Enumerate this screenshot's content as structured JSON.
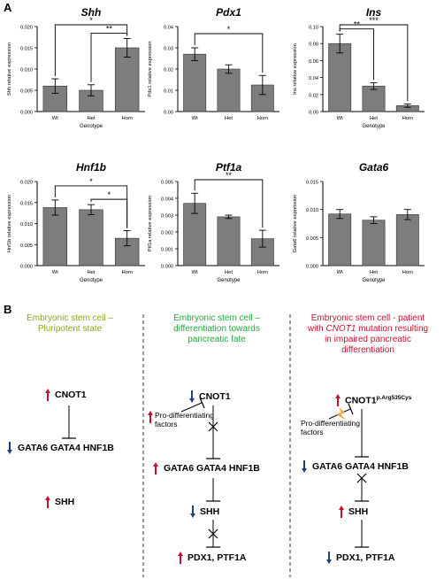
{
  "panel_a": {
    "letter": "A"
  },
  "panel_b": {
    "letter": "B"
  },
  "chart_data": [
    {
      "type": "bar",
      "title": "Shh",
      "ylabel": "Shh relative expression",
      "xlabel": "Genotype",
      "categories": [
        "Wt",
        "Het",
        "Hom"
      ],
      "values": [
        0.006,
        0.005,
        0.015
      ],
      "errors": [
        0.0017,
        0.0013,
        0.0022
      ],
      "ylim": [
        0,
        0.02
      ],
      "yticks": [
        "0.000",
        "0.005",
        "0.010",
        "0.015",
        "0.020"
      ],
      "significance": [
        {
          "from": 0,
          "to": 2,
          "label": "*"
        },
        {
          "from": 1,
          "to": 2,
          "label": "**"
        }
      ]
    },
    {
      "type": "bar",
      "title": "Pdx1",
      "ylabel": "Pdx1 relative expression",
      "xlabel": "",
      "categories": [
        "Wt",
        "Het",
        "Hom"
      ],
      "values": [
        0.027,
        0.02,
        0.0125
      ],
      "errors": [
        0.003,
        0.002,
        0.0045
      ],
      "ylim": [
        0,
        0.04
      ],
      "yticks": [
        "0.00",
        "0.01",
        "0.02",
        "0.03",
        "0.04"
      ],
      "significance": [
        {
          "from": 0,
          "to": 2,
          "label": "*"
        }
      ]
    },
    {
      "type": "bar",
      "title": "Ins",
      "ylabel": "Ins relative expression",
      "xlabel": "Genotype",
      "categories": [
        "Wt",
        "Het",
        "Hom"
      ],
      "values": [
        0.08,
        0.03,
        0.007
      ],
      "errors": [
        0.011,
        0.004,
        0.002
      ],
      "ylim": [
        0,
        0.1
      ],
      "yticks": [
        "0.00",
        "0.02",
        "0.04",
        "0.06",
        "0.08",
        "0.10"
      ],
      "significance": [
        {
          "from": 0,
          "to": 1,
          "label": "**"
        },
        {
          "from": 0,
          "to": 2,
          "label": "***"
        }
      ]
    },
    {
      "type": "bar",
      "title": "Hnf1b",
      "ylabel": "Hnf1b relative expression",
      "xlabel": "Genotype",
      "categories": [
        "Wt",
        "Het",
        "Hom"
      ],
      "values": [
        0.0138,
        0.0133,
        0.0065
      ],
      "errors": [
        0.0018,
        0.0012,
        0.0018
      ],
      "ylim": [
        0,
        0.02
      ],
      "yticks": [
        "0.000",
        "0.005",
        "0.010",
        "0.015",
        "0.020"
      ],
      "significance": [
        {
          "from": 0,
          "to": 2,
          "label": "*"
        },
        {
          "from": 1,
          "to": 2,
          "label": "*"
        }
      ]
    },
    {
      "type": "bar",
      "title": "Ptf1a",
      "ylabel": "Ptf1a relative expression",
      "xlabel": "Genotype",
      "categories": [
        "Wt",
        "Het",
        "Hom"
      ],
      "values": [
        0.0037,
        0.0029,
        0.0016
      ],
      "errors": [
        0.0006,
        0.0001,
        0.0005
      ],
      "ylim": [
        0,
        0.005
      ],
      "yticks": [
        "0.000",
        "0.001",
        "0.002",
        "0.003",
        "0.004",
        "0.005"
      ],
      "significance": [
        {
          "from": 0,
          "to": 2,
          "label": "**"
        }
      ]
    },
    {
      "type": "bar",
      "title": "Gata6",
      "ylabel": "Gata6 relative expression",
      "xlabel": "Genotype",
      "categories": [
        "Wt",
        "Het",
        "Hom"
      ],
      "values": [
        0.0092,
        0.0081,
        0.0091
      ],
      "errors": [
        0.0008,
        0.0006,
        0.0009
      ],
      "ylim": [
        0,
        0.015
      ],
      "yticks": [
        "0.000",
        "0.005",
        "0.010",
        "0.015"
      ],
      "significance": []
    }
  ],
  "pathway": {
    "col1": {
      "title_line1": "Embryonic stem cell –",
      "title_line2": "Pluripotent state",
      "color": "#8aa61c",
      "cnot1": "CNOT1",
      "gata_row": "GATA6  GATA4  HNF1B",
      "shh": "SHH"
    },
    "col2": {
      "title_line1": "Embryonic stem cell –",
      "title_line2": "differentiation towards",
      "title_line3": "pancreatic fate",
      "color": "#22a83a",
      "cnot1": "CNOT1",
      "pro_line1": "Pro-differentiating",
      "pro_line2": "factors",
      "gata_row": "GATA6  GATA4  HNF1B",
      "shh": "SHH",
      "pdx": "PDX1, PTF1A"
    },
    "col3": {
      "title_line1": "Embryonic stem cell - patient",
      "title_line2_pre": "with ",
      "title_line2_italic": "CNOT1",
      "title_line2_post": " mutation resulting",
      "title_line3": "in impaired pancreatic",
      "title_line4": "differentiation",
      "color": "#c8102e",
      "cnot1": "CNOT1",
      "cnot1_sup": "p.Arg535Cys",
      "pro_line1": "Pro-differentiating",
      "pro_line2": "factors",
      "gata_row": "GATA6  GATA4  HNF1B",
      "shh": "SHH",
      "pdx": "PDX1, PTF1A"
    },
    "colors": {
      "up_arrow": "#c8102e",
      "down_arrow": "#1f3f7a",
      "mutation": "#f0a030"
    }
  }
}
